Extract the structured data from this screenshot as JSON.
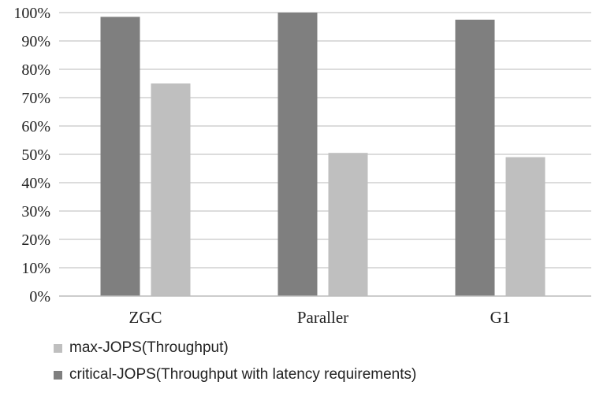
{
  "chart_data": {
    "type": "bar",
    "categories": [
      "ZGC",
      "Paraller",
      "G1"
    ],
    "series": [
      {
        "name": "critical-JOPS(Throughput with latency requirements)",
        "values": [
          98.5,
          100,
          97.5
        ],
        "color": "#7f7f7f"
      },
      {
        "name": "max-JOPS(Throughput)",
        "values": [
          75,
          50.5,
          49
        ],
        "color": "#bfbfbf"
      }
    ],
    "ylim": [
      0,
      100
    ],
    "yticks": [
      "0%",
      "10%",
      "20%",
      "30%",
      "40%",
      "50%",
      "60%",
      "70%",
      "80%",
      "90%",
      "100%"
    ],
    "grid": true,
    "legend_position": "bottom-left"
  },
  "legend": [
    {
      "label": "max-JOPS(Throughput)",
      "color": "#bfbfbf"
    },
    {
      "label": "critical-JOPS(Throughput with latency requirements)",
      "color": "#7f7f7f"
    }
  ]
}
